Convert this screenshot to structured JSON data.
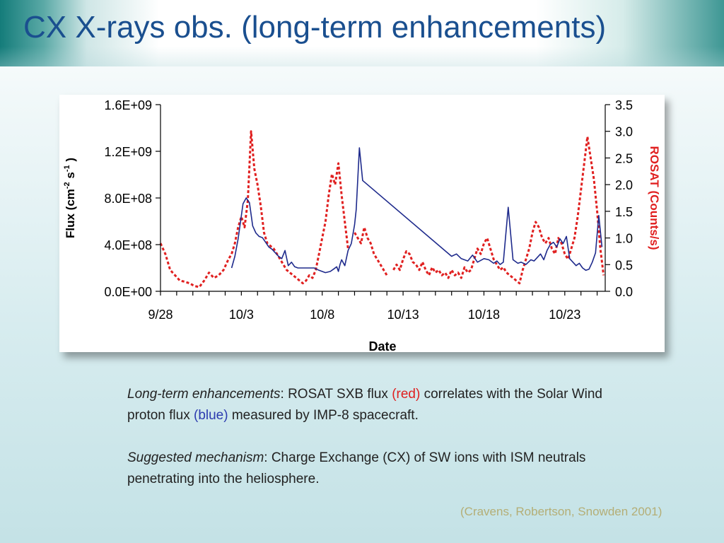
{
  "slide": {
    "title": "CX X-rays obs. (long-term enhancements)",
    "caption": {
      "p1_italic": "Long-term enhancements",
      "p1_a": ": ROSAT SXB flux ",
      "p1_red": "(red)",
      "p1_b": " correlates with the Solar Wind proton flux ",
      "p1_blue": "(blue)",
      "p1_c": " measured by IMP-8 spacecraft.",
      "p2_italic": "Suggested mechanism",
      "p2_a": ": Charge Exchange (CX) of SW ions with ISM neutrals penetrating into the heliosphere."
    },
    "reference": "(Cravens, Robertson, Snowden 2001)",
    "colors": {
      "title": "#1a4f8f",
      "rosat": "#e02020",
      "flux": "#1e2a8c",
      "reference": "#b4ae76"
    }
  },
  "chart_data": {
    "type": "line",
    "xlabel": "Date",
    "ylabel_left": "Flux (cm",
    "ylabel_left_sup1": "-2",
    "ylabel_left_mid": " s",
    "ylabel_left_sup2": "-1",
    "ylabel_left_end": " )",
    "ylabel_right": "ROSAT (Counts/s)",
    "x_ticks": [
      "9/28",
      "10/3",
      "10/8",
      "10/13",
      "10/18",
      "10/23"
    ],
    "x_tick_days": [
      0,
      5,
      10,
      15,
      20,
      25
    ],
    "xlim": [
      0,
      27.5
    ],
    "y_left_ticks": [
      "0.0E+00",
      "4.0E+08",
      "8.0E+08",
      "1.2E+09",
      "1.6E+09"
    ],
    "y_left_tick_values": [
      0,
      400000000,
      800000000,
      1200000000,
      1600000000
    ],
    "ylim_left": [
      0,
      1600000000
    ],
    "y_right_ticks": [
      "0.0",
      "0.5",
      "1.0",
      "1.5",
      "2.0",
      "2.5",
      "3.0",
      "3.5"
    ],
    "y_right_tick_values": [
      0,
      0.5,
      1,
      1.5,
      2,
      2.5,
      3,
      3.5
    ],
    "ylim_right": [
      0,
      3.5
    ],
    "series": [
      {
        "axis": "left",
        "style": "solid",
        "x": [
          4.4,
          4.6,
          4.8,
          5.0,
          5.1,
          5.3,
          5.5,
          5.7,
          5.9,
          6.1,
          6.3,
          6.5,
          6.7,
          6.9,
          7.1,
          7.3,
          7.5,
          7.7,
          7.9,
          8.1,
          8.3,
          8.5,
          9.5,
          9.8,
          10.2,
          10.5,
          10.7,
          10.9,
          11.0,
          11.1,
          11.2,
          11.4,
          11.6,
          11.8,
          12.0,
          12.1,
          12.3,
          12.5,
          18.0,
          18.3,
          18.6,
          19.0,
          19.3,
          19.6,
          20.0,
          20.3,
          20.6,
          20.8,
          21.0,
          21.2,
          21.5,
          21.8,
          22.1,
          22.3,
          22.6,
          22.9,
          23.1,
          23.3,
          23.5,
          23.7,
          23.9,
          24.1,
          24.3,
          24.5,
          24.7,
          24.9,
          25.1,
          25.3,
          25.5,
          25.7,
          25.9,
          26.1,
          26.3,
          26.5,
          26.7,
          26.9,
          27.1,
          27.3
        ],
        "y": [
          200000000,
          300000000,
          450000000,
          650000000,
          750000000,
          800000000,
          760000000,
          560000000,
          500000000,
          470000000,
          460000000,
          420000000,
          380000000,
          360000000,
          330000000,
          300000000,
          280000000,
          350000000,
          220000000,
          250000000,
          210000000,
          200000000,
          200000000,
          180000000,
          160000000,
          170000000,
          190000000,
          210000000,
          170000000,
          230000000,
          270000000,
          220000000,
          350000000,
          410000000,
          570000000,
          700000000,
          1230000000,
          950000000,
          300000000,
          320000000,
          280000000,
          260000000,
          310000000,
          250000000,
          280000000,
          270000000,
          240000000,
          260000000,
          230000000,
          250000000,
          720000000,
          270000000,
          240000000,
          250000000,
          230000000,
          270000000,
          260000000,
          290000000,
          320000000,
          270000000,
          350000000,
          400000000,
          420000000,
          380000000,
          450000000,
          410000000,
          470000000,
          280000000,
          250000000,
          220000000,
          240000000,
          200000000,
          180000000,
          190000000,
          250000000,
          330000000,
          650000000,
          380000000
        ]
      },
      {
        "axis": "right",
        "style": "dashed",
        "x": [
          0.0,
          0.3,
          0.6,
          0.9,
          1.2,
          1.5,
          1.8,
          2.1,
          2.4,
          2.7,
          3.0,
          3.3,
          3.6,
          3.9,
          4.2,
          4.4,
          4.6,
          4.8,
          5.0,
          5.2,
          5.4,
          5.6,
          5.8,
          6.0,
          6.2,
          6.4,
          6.6,
          6.8,
          7.0,
          7.2,
          7.4,
          7.6,
          7.8,
          8.0,
          8.2,
          8.4,
          8.6,
          8.8,
          9.0,
          9.2,
          9.4,
          9.6,
          9.8,
          10.0,
          10.2,
          10.4,
          10.6,
          10.8,
          11.0,
          11.2,
          11.4,
          11.6,
          11.8,
          12.0,
          12.2,
          12.4,
          12.6,
          12.8,
          13.0,
          13.2,
          13.4,
          13.6,
          13.8,
          14.0,
          14.2,
          14.4,
          14.6,
          14.8,
          15.0,
          15.2,
          15.4,
          15.6,
          15.8,
          16.0,
          16.2,
          16.4,
          16.6,
          16.8,
          17.0,
          17.2,
          17.4,
          17.6,
          17.8,
          18.0,
          18.2,
          18.4,
          18.6,
          18.8,
          19.0,
          19.2,
          19.4,
          19.6,
          19.8,
          20.0,
          20.2,
          20.4,
          20.6,
          20.8,
          21.0,
          21.2,
          21.4,
          21.6,
          21.8,
          22.0,
          22.2,
          22.4,
          22.6,
          22.8,
          23.0,
          23.2,
          23.4,
          23.6,
          23.8,
          24.0,
          24.2,
          24.4,
          24.6,
          24.8,
          25.0,
          25.2,
          25.4,
          25.6,
          25.8,
          26.0,
          26.2,
          26.4,
          26.6,
          26.8,
          27.0,
          27.2,
          27.4
        ],
        "y": [
          0.9,
          0.7,
          0.4,
          0.3,
          0.2,
          0.18,
          0.15,
          0.1,
          0.08,
          0.2,
          0.35,
          0.25,
          0.3,
          0.4,
          0.6,
          0.7,
          0.9,
          1.2,
          1.4,
          1.2,
          1.7,
          3.0,
          2.3,
          2.0,
          1.6,
          1.1,
          0.9,
          0.85,
          0.8,
          0.7,
          0.6,
          0.5,
          0.4,
          0.35,
          0.3,
          0.25,
          0.2,
          0.15,
          0.2,
          0.3,
          0.25,
          0.4,
          0.7,
          1.0,
          1.3,
          1.8,
          2.2,
          2.0,
          2.4,
          1.8,
          1.3,
          0.8,
          null,
          1.1,
          1.0,
          0.9,
          1.2,
          1.0,
          0.9,
          0.7,
          0.6,
          0.5,
          0.4,
          0.3,
          null,
          0.4,
          0.5,
          0.4,
          0.6,
          0.75,
          0.7,
          0.55,
          0.5,
          0.4,
          0.55,
          0.4,
          0.3,
          0.45,
          0.35,
          0.4,
          0.3,
          0.35,
          0.25,
          0.4,
          0.3,
          0.35,
          0.25,
          0.45,
          0.35,
          0.4,
          0.6,
          0.8,
          0.7,
          0.9,
          1.0,
          0.8,
          0.6,
          0.5,
          0.4,
          0.45,
          0.35,
          0.3,
          0.25,
          0.2,
          0.15,
          0.4,
          0.6,
          0.8,
          1.1,
          1.3,
          1.2,
          1.0,
          0.9,
          1.0,
          0.8,
          0.7,
          1.0,
          0.9,
          0.7,
          0.6,
          0.8,
          1.0,
          1.4,
          1.9,
          2.4,
          2.9,
          2.5,
          2.1,
          1.5,
          0.8,
          0.3
        ]
      }
    ]
  }
}
